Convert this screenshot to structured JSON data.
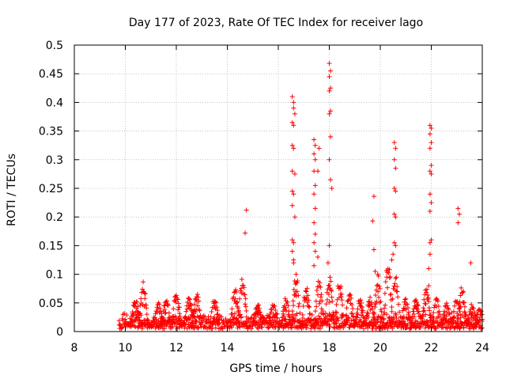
{
  "colors": {
    "series": "#ff0000",
    "axis": "#000000",
    "grid": "#a0a0a0",
    "background": "#ffffff"
  },
  "chart_data": {
    "type": "scatter",
    "title": "Day 177 of 2023, Rate Of TEC Index for receiver lago",
    "xlabel": "GPS time / hours",
    "ylabel": "ROTI / TECUs",
    "xlim": [
      8,
      24
    ],
    "ylim": [
      0,
      0.5
    ],
    "xticks": [
      "8",
      "10",
      "12",
      "14",
      "16",
      "18",
      "20",
      "22",
      "24"
    ],
    "yticks": [
      "0",
      "0.05",
      "0.1",
      "0.15",
      "0.2",
      "0.25",
      "0.3",
      "0.35",
      "0.4",
      "0.45",
      "0.5"
    ],
    "grid": true,
    "legend": "none",
    "marker": "+",
    "series": [
      {
        "baseline_band": {
          "x_range": [
            9.75,
            24.0
          ],
          "y_range": [
            0.0,
            0.03
          ],
          "description_of_density": "dense continuous points"
        },
        "bursts": [
          {
            "x": 10.4,
            "peak": 0.06
          },
          {
            "x": 10.7,
            "peak": 0.09
          },
          {
            "x": 11.3,
            "peak": 0.05
          },
          {
            "x": 11.6,
            "peak": 0.06
          },
          {
            "x": 12.0,
            "peak": 0.07
          },
          {
            "x": 12.5,
            "peak": 0.06
          },
          {
            "x": 12.8,
            "peak": 0.07
          },
          {
            "x": 13.5,
            "peak": 0.06
          },
          {
            "x": 14.3,
            "peak": 0.08
          },
          {
            "x": 14.6,
            "peak": 0.1
          },
          {
            "x": 15.2,
            "peak": 0.05
          },
          {
            "x": 15.8,
            "peak": 0.05
          },
          {
            "x": 16.3,
            "peak": 0.06
          },
          {
            "x": 16.7,
            "peak": 0.1
          },
          {
            "x": 17.1,
            "peak": 0.08
          },
          {
            "x": 17.6,
            "peak": 0.1
          },
          {
            "x": 18.0,
            "peak": 0.1
          },
          {
            "x": 18.4,
            "peak": 0.09
          },
          {
            "x": 18.8,
            "peak": 0.07
          },
          {
            "x": 19.2,
            "peak": 0.06
          },
          {
            "x": 19.6,
            "peak": 0.06
          },
          {
            "x": 19.9,
            "peak": 0.1
          },
          {
            "x": 20.3,
            "peak": 0.13
          },
          {
            "x": 20.6,
            "peak": 0.1
          },
          {
            "x": 21.0,
            "peak": 0.06
          },
          {
            "x": 21.4,
            "peak": 0.06
          },
          {
            "x": 21.8,
            "peak": 0.08
          },
          {
            "x": 22.2,
            "peak": 0.06
          },
          {
            "x": 22.6,
            "peak": 0.05
          },
          {
            "x": 23.0,
            "peak": 0.06
          },
          {
            "x": 23.2,
            "peak": 0.08
          },
          {
            "x": 23.6,
            "peak": 0.05
          },
          {
            "x": 23.9,
            "peak": 0.04
          }
        ],
        "outlier_points": [
          {
            "x": 14.75,
            "y": 0.212
          },
          {
            "x": 14.7,
            "y": 0.172
          },
          {
            "x": 16.55,
            "y": 0.41
          },
          {
            "x": 16.6,
            "y": 0.4
          },
          {
            "x": 16.6,
            "y": 0.39
          },
          {
            "x": 16.65,
            "y": 0.38
          },
          {
            "x": 16.55,
            "y": 0.365
          },
          {
            "x": 16.6,
            "y": 0.36
          },
          {
            "x": 16.55,
            "y": 0.325
          },
          {
            "x": 16.6,
            "y": 0.32
          },
          {
            "x": 16.55,
            "y": 0.28
          },
          {
            "x": 16.65,
            "y": 0.275
          },
          {
            "x": 16.55,
            "y": 0.245
          },
          {
            "x": 16.6,
            "y": 0.24
          },
          {
            "x": 16.55,
            "y": 0.22
          },
          {
            "x": 16.65,
            "y": 0.2
          },
          {
            "x": 16.55,
            "y": 0.16
          },
          {
            "x": 16.6,
            "y": 0.155
          },
          {
            "x": 16.55,
            "y": 0.14
          },
          {
            "x": 16.6,
            "y": 0.125
          },
          {
            "x": 16.6,
            "y": 0.12
          },
          {
            "x": 16.7,
            "y": 0.1
          },
          {
            "x": 17.4,
            "y": 0.335
          },
          {
            "x": 17.45,
            "y": 0.325
          },
          {
            "x": 17.4,
            "y": 0.31
          },
          {
            "x": 17.45,
            "y": 0.3
          },
          {
            "x": 17.4,
            "y": 0.28
          },
          {
            "x": 17.45,
            "y": 0.255
          },
          {
            "x": 17.4,
            "y": 0.24
          },
          {
            "x": 17.45,
            "y": 0.215
          },
          {
            "x": 17.4,
            "y": 0.19
          },
          {
            "x": 17.45,
            "y": 0.17
          },
          {
            "x": 17.4,
            "y": 0.155
          },
          {
            "x": 17.45,
            "y": 0.14
          },
          {
            "x": 17.4,
            "y": 0.115
          },
          {
            "x": 17.6,
            "y": 0.32
          },
          {
            "x": 17.55,
            "y": 0.28
          },
          {
            "x": 17.55,
            "y": 0.13
          },
          {
            "x": 18.0,
            "y": 0.468
          },
          {
            "x": 18.05,
            "y": 0.455
          },
          {
            "x": 18.0,
            "y": 0.445
          },
          {
            "x": 18.05,
            "y": 0.425
          },
          {
            "x": 18.0,
            "y": 0.42
          },
          {
            "x": 18.05,
            "y": 0.385
          },
          {
            "x": 18.0,
            "y": 0.38
          },
          {
            "x": 18.05,
            "y": 0.34
          },
          {
            "x": 18.0,
            "y": 0.3
          },
          {
            "x": 18.05,
            "y": 0.265
          },
          {
            "x": 18.1,
            "y": 0.25
          },
          {
            "x": 18.0,
            "y": 0.15
          },
          {
            "x": 17.95,
            "y": 0.12
          },
          {
            "x": 19.75,
            "y": 0.236
          },
          {
            "x": 19.7,
            "y": 0.193
          },
          {
            "x": 19.75,
            "y": 0.143
          },
          {
            "x": 19.8,
            "y": 0.105
          },
          {
            "x": 19.9,
            "y": 0.1
          },
          {
            "x": 20.55,
            "y": 0.33
          },
          {
            "x": 20.6,
            "y": 0.32
          },
          {
            "x": 20.55,
            "y": 0.3
          },
          {
            "x": 20.6,
            "y": 0.285
          },
          {
            "x": 20.55,
            "y": 0.25
          },
          {
            "x": 20.6,
            "y": 0.245
          },
          {
            "x": 20.55,
            "y": 0.205
          },
          {
            "x": 20.6,
            "y": 0.2
          },
          {
            "x": 20.55,
            "y": 0.155
          },
          {
            "x": 20.6,
            "y": 0.15
          },
          {
            "x": 20.5,
            "y": 0.135
          },
          {
            "x": 20.45,
            "y": 0.125
          },
          {
            "x": 21.95,
            "y": 0.36
          },
          {
            "x": 22.0,
            "y": 0.355
          },
          {
            "x": 21.95,
            "y": 0.345
          },
          {
            "x": 22.0,
            "y": 0.33
          },
          {
            "x": 21.95,
            "y": 0.32
          },
          {
            "x": 22.0,
            "y": 0.29
          },
          {
            "x": 21.95,
            "y": 0.28
          },
          {
            "x": 22.0,
            "y": 0.275
          },
          {
            "x": 21.95,
            "y": 0.24
          },
          {
            "x": 22.0,
            "y": 0.225
          },
          {
            "x": 21.95,
            "y": 0.21
          },
          {
            "x": 22.0,
            "y": 0.16
          },
          {
            "x": 21.95,
            "y": 0.155
          },
          {
            "x": 21.95,
            "y": 0.135
          },
          {
            "x": 21.9,
            "y": 0.11
          },
          {
            "x": 21.9,
            "y": 0.08
          },
          {
            "x": 23.05,
            "y": 0.215
          },
          {
            "x": 23.1,
            "y": 0.205
          },
          {
            "x": 23.05,
            "y": 0.19
          },
          {
            "x": 23.55,
            "y": 0.12
          }
        ]
      }
    ]
  }
}
